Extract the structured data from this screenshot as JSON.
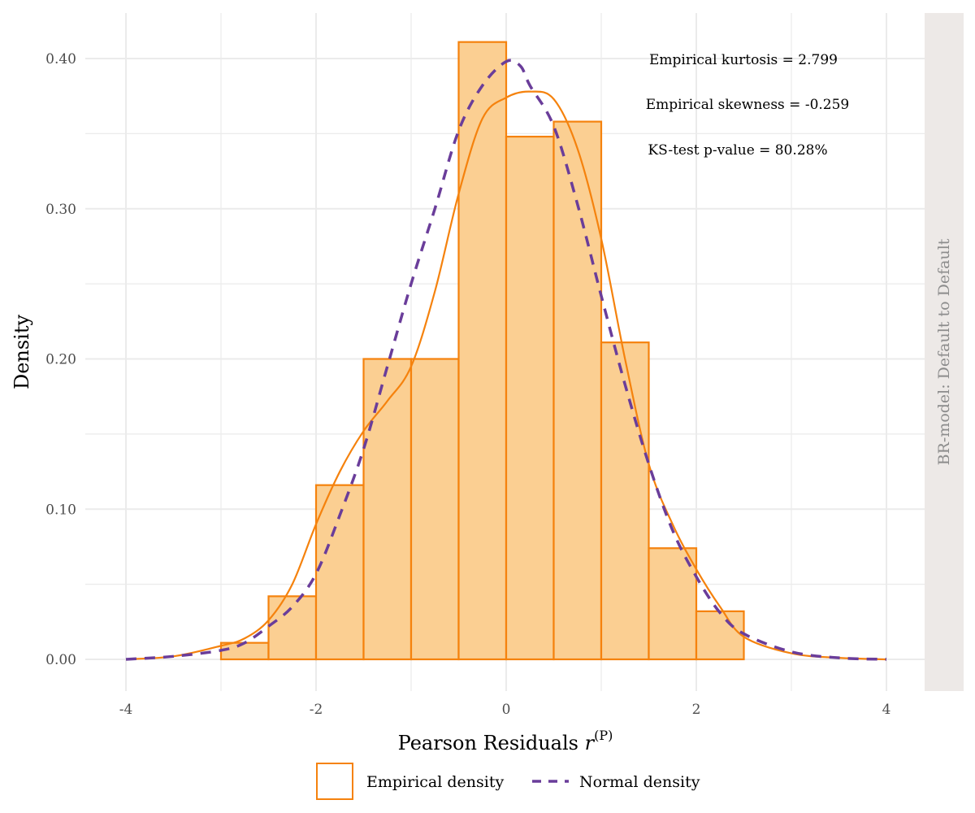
{
  "chart_data": {
    "type": "bar",
    "xlabel": "Pearson Residuals",
    "xlabel_math": "r",
    "xlabel_sup": "(P)",
    "ylabel": "Density",
    "xlim": [
      -4,
      4
    ],
    "ylim": [
      0,
      0.4
    ],
    "x_ticks": [
      -4,
      -2,
      0,
      2,
      4
    ],
    "x_tick_labels": [
      "-4",
      "-2",
      "0",
      "2",
      "4"
    ],
    "y_ticks": [
      0,
      0.1,
      0.2,
      0.3,
      0.4
    ],
    "y_tick_labels": [
      "0.00",
      "0.10",
      "0.20",
      "0.30",
      "0.40"
    ],
    "grid": true,
    "facet_label": "BR-model: Default to Default",
    "annotations": [
      "Empirical kurtosis = 2.799",
      "Empirical skewness = -0.259",
      "KS-test p-value = 80.28%"
    ],
    "legend": {
      "position": "bottom",
      "items": [
        "Empirical density",
        "Normal density"
      ]
    },
    "colors": {
      "bar_fill": "#fbcf92",
      "bar_stroke": "#f5820d",
      "empirical_line": "#f5820d",
      "normal_line": "#6a3d9a",
      "grid": "#ebebeb",
      "strip_bg": "#ede9e7"
    },
    "histogram": {
      "bin_edges": [
        -3,
        -2.5,
        -2,
        -1.5,
        -1,
        -0.5,
        0,
        0.5,
        1,
        1.5,
        2,
        2.5
      ],
      "density": [
        0.011,
        0.042,
        0.116,
        0.2,
        0.2,
        0.411,
        0.348,
        0.358,
        0.211,
        0.074,
        0.032
      ]
    },
    "series": [
      {
        "name": "Empirical density",
        "style": "solid",
        "x": [
          -4,
          -3.5,
          -3,
          -2.75,
          -2.5,
          -2.25,
          -2,
          -1.75,
          -1.5,
          -1.25,
          -1,
          -0.75,
          -0.5,
          -0.25,
          0,
          0.25,
          0.5,
          0.75,
          1,
          1.25,
          1.5,
          1.75,
          2,
          2.25,
          2.5,
          3,
          3.5,
          4
        ],
        "y": [
          0,
          0.002,
          0.009,
          0.014,
          0.026,
          0.05,
          0.09,
          0.125,
          0.152,
          0.172,
          0.195,
          0.245,
          0.31,
          0.36,
          0.374,
          0.378,
          0.373,
          0.34,
          0.28,
          0.2,
          0.13,
          0.09,
          0.06,
          0.035,
          0.015,
          0.004,
          0.001,
          0
        ]
      },
      {
        "name": "Normal density",
        "style": "dashed",
        "x": [
          -4,
          -3.5,
          -3,
          -2.75,
          -2.5,
          -2.25,
          -2,
          -1.75,
          -1.5,
          -1.25,
          -1,
          -0.75,
          -0.5,
          -0.25,
          0,
          0.15,
          0.25,
          0.5,
          0.75,
          1,
          1.25,
          1.5,
          1.75,
          2,
          2.25,
          2.5,
          3,
          3.5,
          4
        ],
        "y": [
          0,
          0.002,
          0.006,
          0.011,
          0.022,
          0.035,
          0.057,
          0.096,
          0.14,
          0.195,
          0.25,
          0.3,
          0.352,
          0.382,
          0.398,
          0.395,
          0.382,
          0.355,
          0.303,
          0.242,
          0.183,
          0.13,
          0.086,
          0.055,
          0.031,
          0.017,
          0.005,
          0.001,
          0
        ]
      }
    ]
  }
}
